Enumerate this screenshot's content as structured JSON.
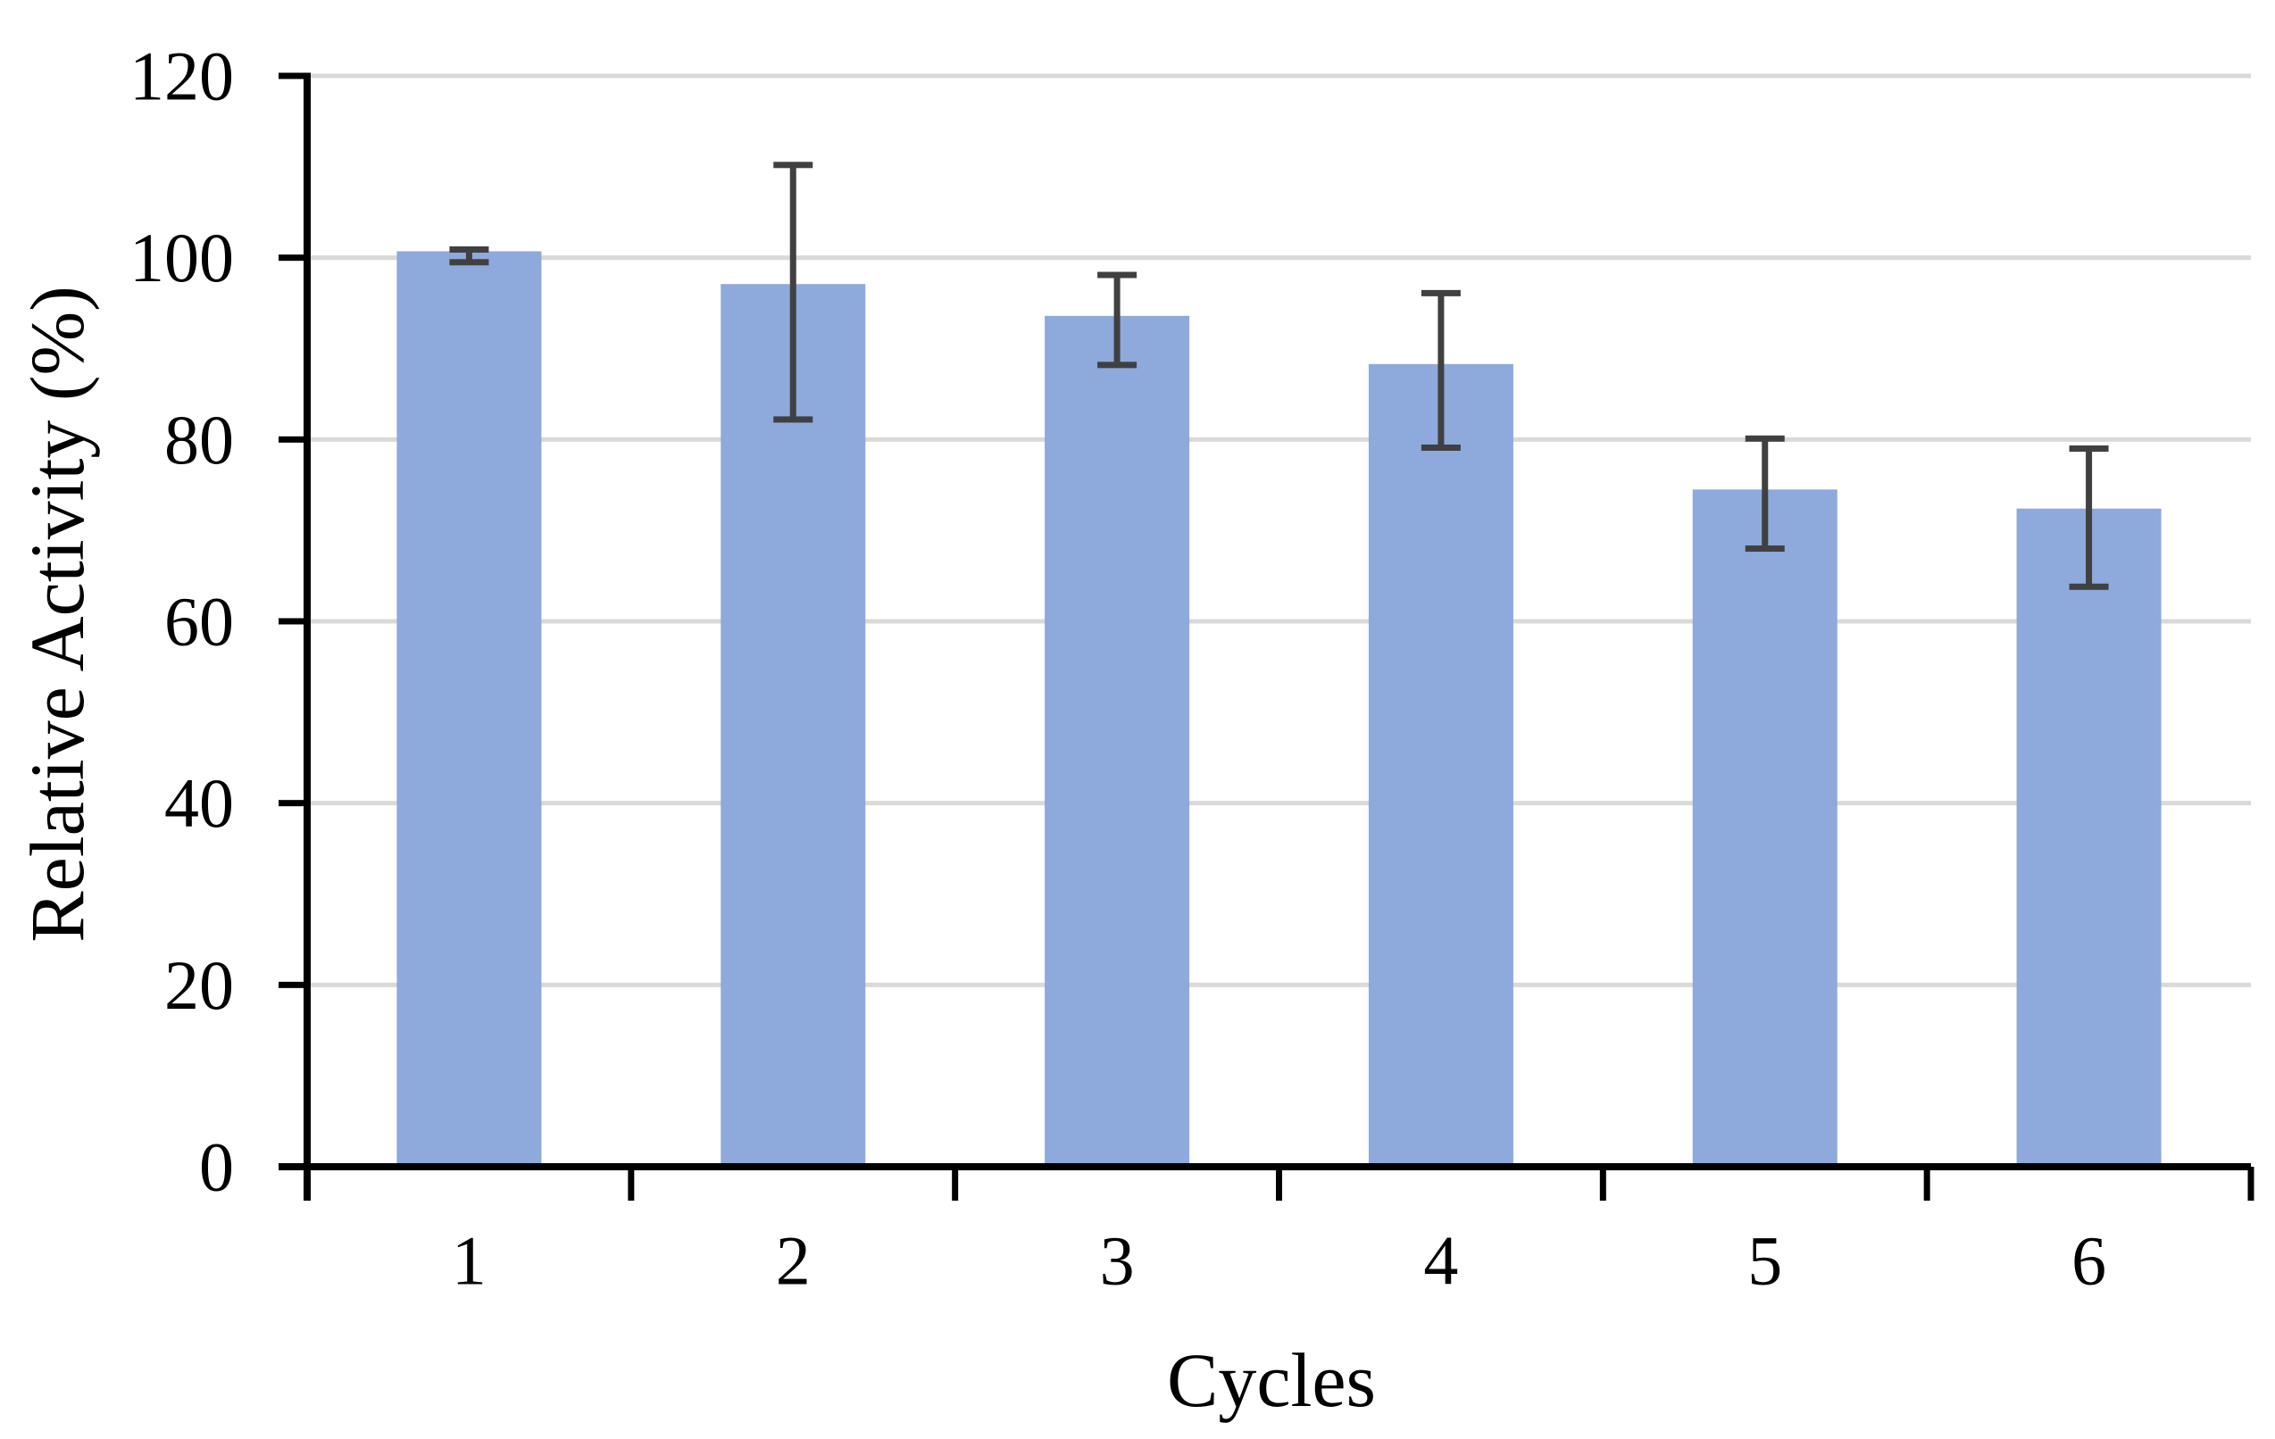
{
  "chart_data": {
    "type": "bar",
    "title": "",
    "xlabel": "Cycles",
    "ylabel": "Relative Activity (%)",
    "categories": [
      "1",
      "2",
      "3",
      "4",
      "5",
      "6"
    ],
    "values": [
      100.7,
      97.1,
      93.6,
      88.3,
      74.5,
      72.4
    ],
    "error_high": [
      100.9,
      110.2,
      98.1,
      96.1,
      80.1,
      79.0
    ],
    "error_low": [
      99.5,
      82.2,
      88.2,
      79.1,
      68.0,
      63.8
    ],
    "ylim": [
      0,
      120
    ],
    "ytick_step": 20,
    "yticks": [
      "0",
      "20",
      "40",
      "60",
      "80",
      "100",
      "120"
    ],
    "grid": true,
    "legend": "none",
    "colors": {
      "bar_fill": "#8EA9DB",
      "error_bar": "#404040",
      "gridline": "#D9D9D9",
      "axis": "#000000",
      "text": "#000000",
      "background": "#FFFFFF"
    }
  }
}
